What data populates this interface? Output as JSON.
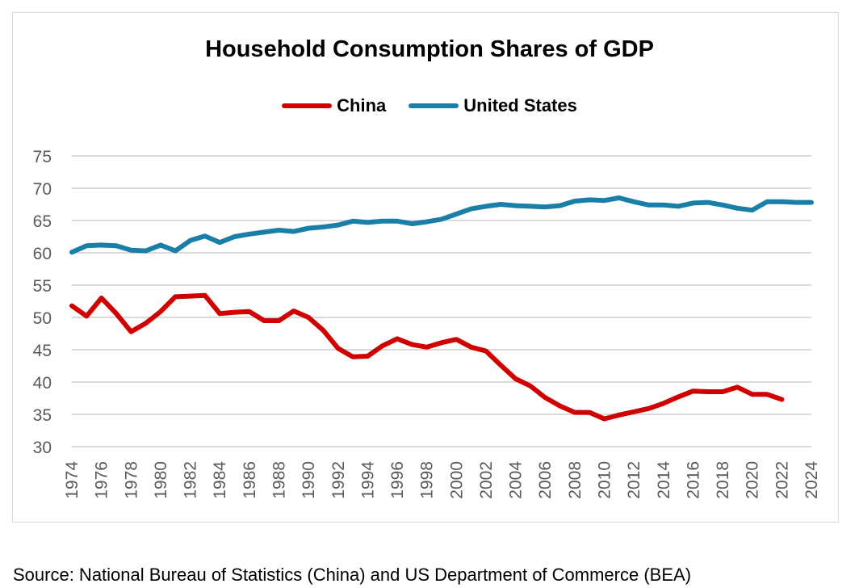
{
  "chart_data": {
    "type": "line",
    "title": "Household Consumption Shares of GDP",
    "xlabel": "",
    "ylabel": "",
    "ylim": [
      30,
      75
    ],
    "yticks": [
      30,
      35,
      40,
      45,
      50,
      55,
      60,
      65,
      70,
      75
    ],
    "xticks": [
      1974,
      1976,
      1978,
      1980,
      1982,
      1984,
      1986,
      1988,
      1990,
      1992,
      1994,
      1996,
      1998,
      2000,
      2002,
      2004,
      2006,
      2008,
      2010,
      2012,
      2014,
      2016,
      2018,
      2020,
      2022,
      2024
    ],
    "xlim": [
      1974,
      2024
    ],
    "grid": true,
    "legend_position": "top-center",
    "series": [
      {
        "name": "China",
        "color": "#d00000",
        "x": [
          1974,
          1975,
          1976,
          1977,
          1978,
          1979,
          1980,
          1981,
          1982,
          1983,
          1984,
          1985,
          1986,
          1987,
          1988,
          1989,
          1990,
          1991,
          1992,
          1993,
          1994,
          1995,
          1996,
          1997,
          1998,
          1999,
          2000,
          2001,
          2002,
          2003,
          2004,
          2005,
          2006,
          2007,
          2008,
          2009,
          2010,
          2011,
          2012,
          2013,
          2014,
          2015,
          2016,
          2017,
          2018,
          2019,
          2020,
          2021,
          2022
        ],
        "values": [
          51.8,
          50.2,
          53.0,
          50.6,
          47.8,
          49.1,
          50.9,
          53.2,
          53.3,
          53.4,
          50.6,
          50.8,
          50.9,
          49.5,
          49.5,
          51.0,
          50.0,
          48.0,
          45.2,
          43.9,
          44.0,
          45.6,
          46.7,
          45.8,
          45.4,
          46.1,
          46.6,
          45.4,
          44.8,
          42.6,
          40.5,
          39.4,
          37.6,
          36.3,
          35.3,
          35.3,
          34.3,
          34.9,
          35.4,
          35.9,
          36.7,
          37.7,
          38.6,
          38.5,
          38.5,
          39.2,
          38.1,
          38.1,
          37.3
        ]
      },
      {
        "name": "United States",
        "color": "#1a7fa8",
        "x": [
          1974,
          1975,
          1976,
          1977,
          1978,
          1979,
          1980,
          1981,
          1982,
          1983,
          1984,
          1985,
          1986,
          1987,
          1988,
          1989,
          1990,
          1991,
          1992,
          1993,
          1994,
          1995,
          1996,
          1997,
          1998,
          1999,
          2000,
          2001,
          2002,
          2003,
          2004,
          2005,
          2006,
          2007,
          2008,
          2009,
          2010,
          2011,
          2012,
          2013,
          2014,
          2015,
          2016,
          2017,
          2018,
          2019,
          2020,
          2021,
          2022,
          2023,
          2024
        ],
        "values": [
          60.1,
          61.1,
          61.2,
          61.1,
          60.4,
          60.3,
          61.2,
          60.3,
          61.9,
          62.6,
          61.6,
          62.5,
          62.9,
          63.2,
          63.5,
          63.3,
          63.8,
          64.0,
          64.3,
          64.9,
          64.7,
          64.9,
          64.9,
          64.5,
          64.8,
          65.2,
          66.0,
          66.8,
          67.2,
          67.5,
          67.3,
          67.2,
          67.1,
          67.3,
          68.0,
          68.2,
          68.1,
          68.5,
          67.9,
          67.4,
          67.4,
          67.2,
          67.7,
          67.8,
          67.4,
          66.9,
          66.6,
          67.9,
          67.9,
          67.8,
          67.8
        ]
      }
    ]
  },
  "source": "Source: National Bureau of Statistics (China)  and US Department of Commerce (BEA)"
}
